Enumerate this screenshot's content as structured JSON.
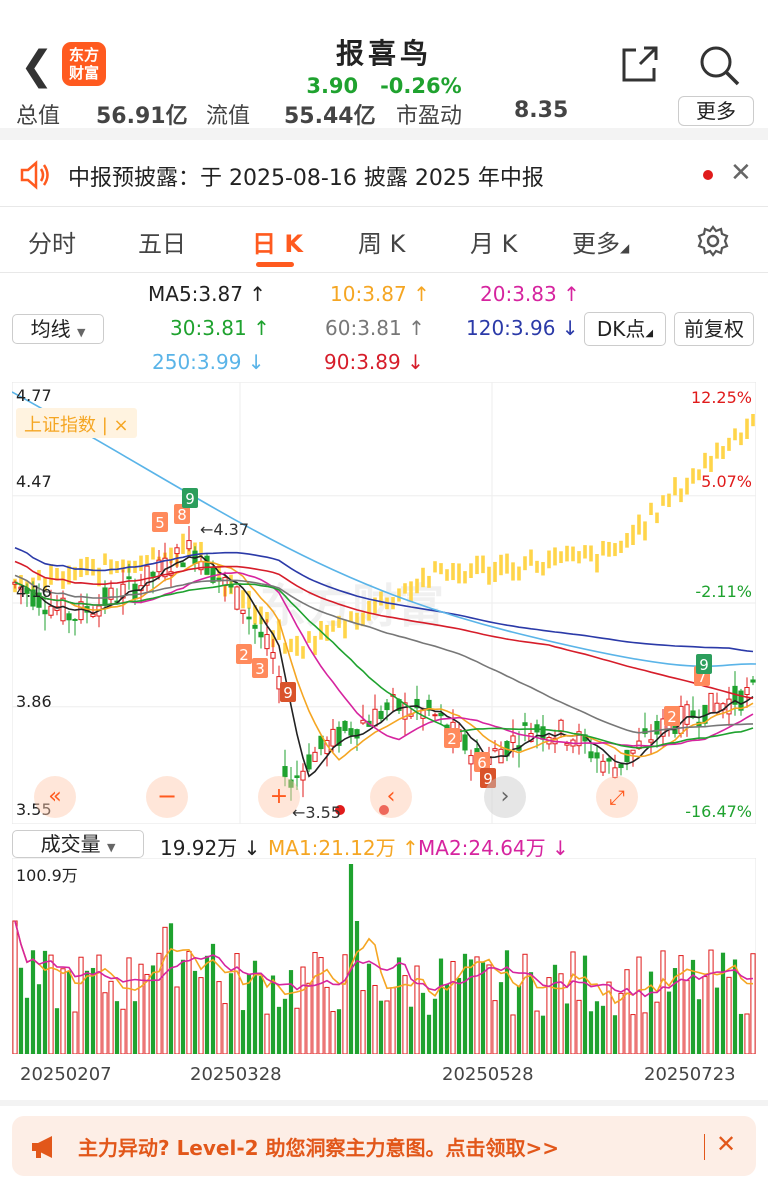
{
  "header": {
    "logo_line1": "东方",
    "logo_line2": "财富",
    "title": "报喜鸟",
    "price": "3.90",
    "change": "-0.26%"
  },
  "stats": {
    "items": [
      {
        "label": "总值",
        "value": "56.91亿"
      },
      {
        "label": "流值",
        "value": "55.44亿"
      },
      {
        "label": "市盈动",
        "value": "8.35"
      }
    ],
    "more": "更多"
  },
  "notice": {
    "text": "中报预披露：于 2025-08-16 披露 2025 年中报"
  },
  "tabs": [
    "分时",
    "五日",
    "日 K",
    "周 K",
    "月 K",
    "更多"
  ],
  "active_tab": 2,
  "indicator": {
    "selector": "均线",
    "dk_button": "DK点",
    "fq_button": "前复权",
    "ma": [
      {
        "text": "MA5:3.87 ↑",
        "color": "#222222"
      },
      {
        "text": "10:3.87 ↑",
        "color": "#f5a623"
      },
      {
        "text": "20:3.83 ↑",
        "color": "#d6249f"
      },
      {
        "text": "30:3.81 ↑",
        "color": "#1fa22f"
      },
      {
        "text": "60:3.81 ↑",
        "color": "#777777"
      },
      {
        "text": "120:3.96 ↓",
        "color": "#2b3aa8"
      },
      {
        "text": "250:3.99 ↓",
        "color": "#5ab4e8"
      },
      {
        "text": "90:3.89 ↓",
        "color": "#d61d2a"
      }
    ]
  },
  "kline": {
    "y_labels": [
      "4.77",
      "4.47",
      "4.16",
      "3.86",
      "3.55"
    ],
    "pct_labels": [
      "12.25%",
      "5.07%",
      "-2.11%",
      "-16.47%"
    ],
    "overlay_label": "上证指数 | ×",
    "high_marker": "4.37",
    "low_marker": "3.55",
    "watermark": "东方财富",
    "pct_colors": [
      "#e01b1b",
      "#e01b1b",
      "#1fa22f",
      "#1fa22f"
    ]
  },
  "volume": {
    "selector": "成交量",
    "value": "19.92万 ↓",
    "ma1": "MA1:21.12万 ↑",
    "ma2": "MA2:24.64万 ↓",
    "max_label": "100.9万"
  },
  "dates": [
    "20250207",
    "20250328",
    "20250528",
    "20250723"
  ],
  "banner": {
    "text": "主力异动? Level-2 助您洞察主力意图。点击领取>>"
  },
  "chart_data": {
    "type": "candlestick",
    "title": "",
    "ylim": [
      3.55,
      4.77
    ],
    "x_ticks": [
      "20250207",
      "20250328",
      "20250528",
      "20250723"
    ],
    "ma_latest": {
      "MA5": 3.87,
      "MA10": 3.87,
      "MA20": 3.83,
      "MA30": 3.81,
      "MA60": 3.81,
      "MA120": 3.96,
      "MA250": 3.99,
      "MA90": 3.89
    },
    "volume_latest": "19.92万",
    "volume_max": "100.9万"
  }
}
